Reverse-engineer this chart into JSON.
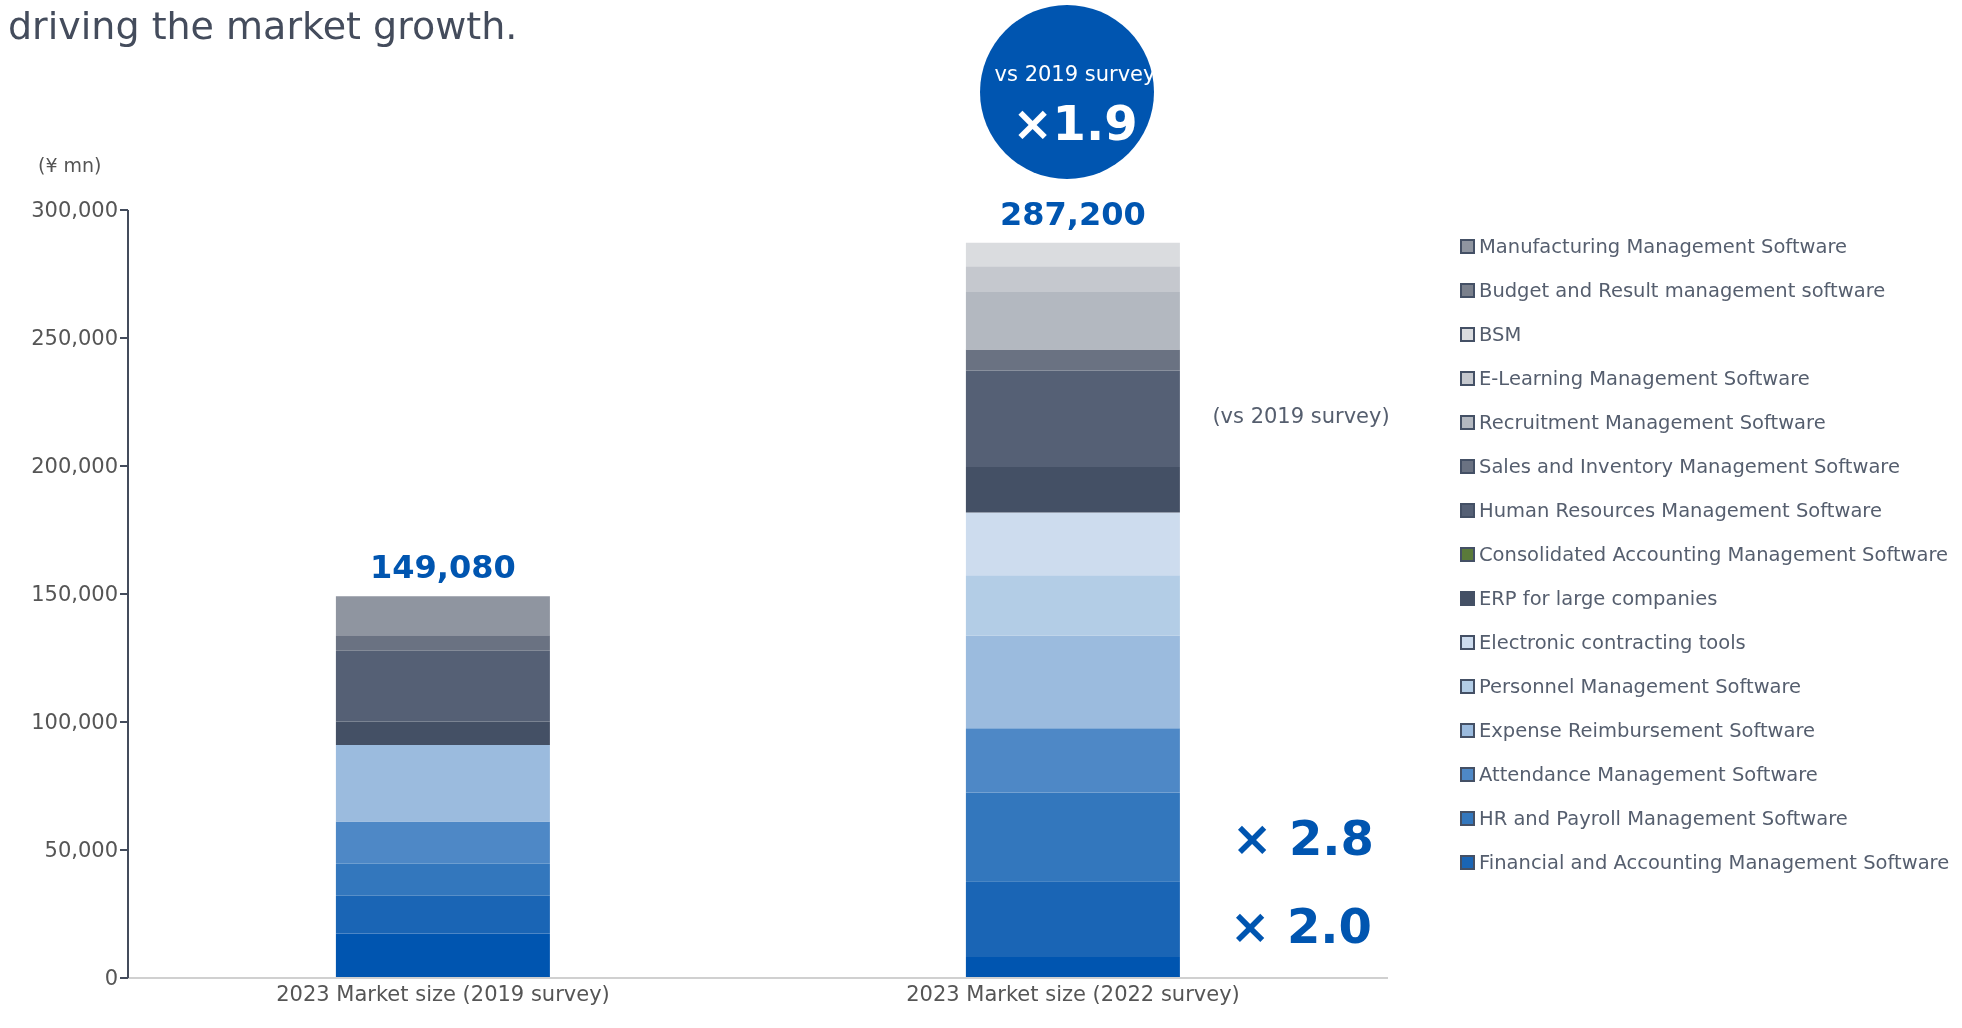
{
  "chart_data": {
    "type": "bar",
    "stacked": true,
    "title": "driving the market growth.",
    "ylabel": "(¥ mn)",
    "categories": [
      "2023 Market size (2019 survey)",
      "2023 Market size (2022 survey)"
    ],
    "ylim": [
      0,
      300000
    ],
    "yticks": [
      0,
      {
        "value": 50000,
        "label": "50,000"
      },
      {
        "value": 100000,
        "label": "100,000"
      },
      {
        "value": 150000,
        "label": "150,000"
      },
      {
        "value": 200000,
        "label": "200,000"
      },
      {
        "value": 250000,
        "label": "250,000"
      },
      {
        "value": 300000,
        "label": "300,000"
      }
    ],
    "legend": "right",
    "totals": [
      "149,080",
      "287,200"
    ],
    "annotations": [
      "vs 2019 survey",
      "×1.9",
      "(vs 2019 survey)",
      "× 2.8",
      "× 2.0"
    ],
    "series": [
      {
        "color": "#0055b0",
        "values": [
          17400,
          8200
        ]
      },
      {
        "name": "Financial and Accounting Management Software",
        "color": "#1a65b5",
        "values": [
          14700,
          29600
        ]
      },
      {
        "name": "HR and Payroll Management Software",
        "color": "#3377bd",
        "values": [
          12500,
          34700
        ]
      },
      {
        "name": "Attendance Management Software",
        "color": "#4e88c6",
        "values": [
          16500,
          25100
        ]
      },
      {
        "name": "Expense Reimbursement Software",
        "color": "#9bbbde",
        "values": [
          29900,
          36200
        ]
      },
      {
        "name": "Personnel Management Software",
        "color": "#b3cde6",
        "values": [
          null,
          23500
        ]
      },
      {
        "name": "Electronic contracting tools",
        "color": "#cddcee",
        "values": [
          null,
          24500
        ]
      },
      {
        "name": "ERP for large companies",
        "color": "#445065",
        "values": [
          9200,
          17800
        ]
      },
      {
        "name": "Consolidated Accounting Management Software",
        "color": "#5a7a3a",
        "values": [
          null,
          null
        ]
      },
      {
        "name": "Human Resources Management Software",
        "color": "#556075",
        "values": [
          27600,
          37700
        ]
      },
      {
        "name": "Sales and Inventory Management Software",
        "color": "#6a7282",
        "values": [
          6100,
          8200
        ]
      },
      {
        "name": "Recruitment Management Software",
        "color": "#b3b8c0",
        "values": [
          null,
          22500
        ]
      },
      {
        "name": "E-Learning Management Software",
        "color": "#c5c8ce",
        "values": [
          null,
          10000
        ]
      },
      {
        "name": "BSM",
        "color": "#dadcdf",
        "values": [
          null,
          9200
        ]
      },
      {
        "name": "Budget and Result management software",
        "color": "#7a808c",
        "values": [
          null,
          null
        ]
      },
      {
        "name": "Manufacturing Management Software",
        "color": "#8f95a0",
        "values": [
          15180,
          null
        ]
      }
    ]
  }
}
